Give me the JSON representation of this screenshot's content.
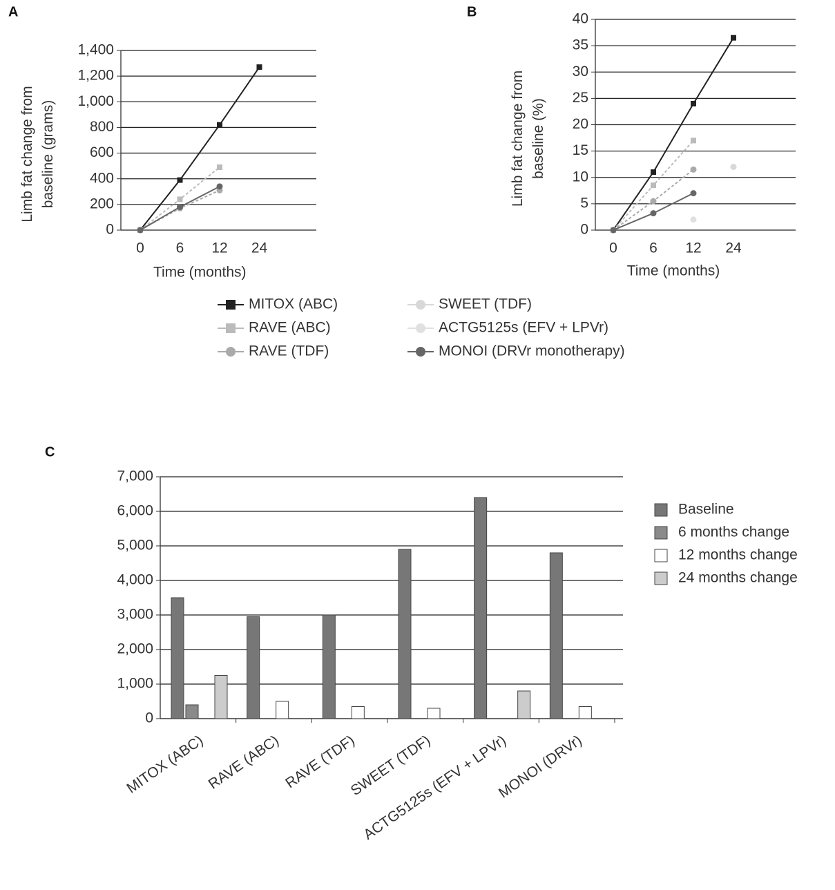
{
  "chart_data": [
    {
      "type": "line",
      "panel": "A",
      "ylabel": [
        "Limb fat change from",
        "baseline (grams)"
      ],
      "xlabel": "Time (months)",
      "categories": [
        "0",
        "6",
        "12",
        "24"
      ],
      "ylim": [
        0,
        1400
      ],
      "yticks": [
        0,
        200,
        400,
        600,
        800,
        {
          "value": 1000,
          "label": "1,000"
        },
        {
          "value": 1200,
          "label": "1,200"
        },
        {
          "value": 1400,
          "label": "1,400"
        }
      ],
      "grid": true,
      "series": [
        {
          "name": "MITOX (ABC)",
          "color": "#222222",
          "marker": "square",
          "values": [
            0,
            390,
            820,
            1270
          ]
        },
        {
          "name": "RAVE (ABC)",
          "color": "#bbbbbb",
          "marker": "square",
          "values": [
            0,
            240,
            490,
            null
          ]
        },
        {
          "name": "RAVE (TDF)",
          "color": "#aaaaaa",
          "marker": "circle",
          "values": [
            0,
            170,
            310,
            null
          ]
        },
        {
          "name": "MONOI (DRVr monotherapy)",
          "color": "#666666",
          "marker": "circle",
          "values": [
            0,
            180,
            340,
            null
          ]
        }
      ]
    },
    {
      "type": "line",
      "panel": "B",
      "ylabel": [
        "Limb fat change from",
        "baseline (%)"
      ],
      "xlabel": "Time (months)",
      "categories": [
        "0",
        "6",
        "12",
        "24"
      ],
      "ylim": [
        0,
        40
      ],
      "yticks": [
        0,
        5,
        10,
        15,
        20,
        25,
        30,
        35,
        40
      ],
      "grid": true,
      "series": [
        {
          "name": "MITOX (ABC)",
          "color": "#222222",
          "marker": "square",
          "values": [
            0,
            11,
            24,
            36.5
          ]
        },
        {
          "name": "RAVE (ABC)",
          "color": "#bbbbbb",
          "marker": "square",
          "values": [
            0,
            8.5,
            17,
            null
          ]
        },
        {
          "name": "RAVE (TDF)",
          "color": "#aaaaaa",
          "marker": "circle",
          "values": [
            0,
            5.5,
            11.5,
            null
          ]
        },
        {
          "name": "SWEET (TDF)",
          "color": "#d8d8d8",
          "marker": "circle",
          "values": [
            0,
            null,
            null,
            12
          ]
        },
        {
          "name": "ACTG5125s (EFV + LPVr)",
          "color": "#e0e0e0",
          "marker": "circle",
          "values": [
            0,
            null,
            2,
            null
          ]
        },
        {
          "name": "MONOI (DRVr monotherapy)",
          "color": "#666666",
          "marker": "circle",
          "values": [
            0,
            3.2,
            7,
            null
          ]
        }
      ]
    },
    {
      "type": "bar",
      "panel": "C",
      "categories": [
        "MITOX (ABC)",
        "RAVE (ABC)",
        "RAVE (TDF)",
        "SWEET (TDF)",
        "ACTG5125s (EFV + LPVr)",
        "MONOI (DRVr)"
      ],
      "ylim": [
        0,
        7000
      ],
      "yticks": [
        0,
        {
          "value": 1000,
          "label": "1,000"
        },
        {
          "value": 2000,
          "label": "2,000"
        },
        {
          "value": 3000,
          "label": "3,000"
        },
        {
          "value": 4000,
          "label": "4,000"
        },
        {
          "value": 5000,
          "label": "5,000"
        },
        {
          "value": 6000,
          "label": "6,000"
        },
        {
          "value": 7000,
          "label": "7,000"
        }
      ],
      "grid": true,
      "series": [
        {
          "name": "Baseline",
          "color": "#777777",
          "values": [
            3500,
            2950,
            3000,
            4900,
            6400,
            4800
          ]
        },
        {
          "name": "6 months change",
          "color": "#8a8a8a",
          "values": [
            400,
            null,
            null,
            null,
            null,
            null
          ]
        },
        {
          "name": "12 months change",
          "color": "#ffffff",
          "values": [
            null,
            500,
            350,
            300,
            null,
            350
          ]
        },
        {
          "name": "24 months change",
          "color": "#cccccc",
          "values": [
            1250,
            null,
            null,
            null,
            800,
            null
          ]
        }
      ]
    }
  ]
}
